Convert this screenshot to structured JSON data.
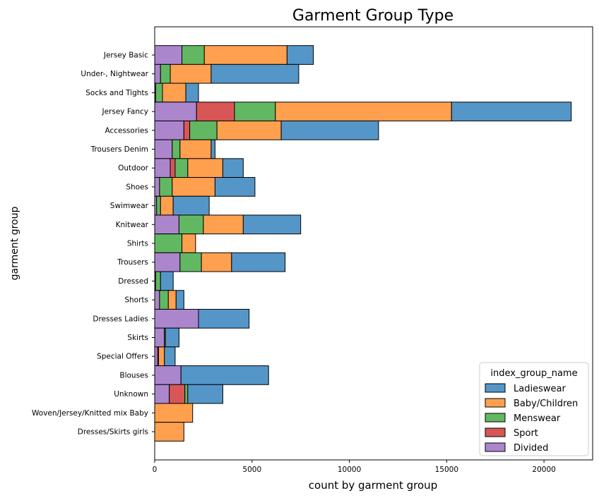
{
  "chart_data": {
    "type": "bar",
    "orientation": "horizontal",
    "stacked": true,
    "title": "Garment Group Type",
    "xlabel": "count by garment group",
    "ylabel": "garment group",
    "xlim": [
      0,
      22500
    ],
    "xticks": [
      0,
      5000,
      10000,
      15000,
      20000
    ],
    "grid": false,
    "legend": {
      "title": "index_group_name",
      "placement": "lower-right"
    },
    "categories": [
      "Jersey Basic",
      "Under-, Nightwear",
      "Socks and Tights",
      "Jersey Fancy",
      "Accessories",
      "Trousers Denim",
      "Outdoor",
      "Shoes",
      "Swimwear",
      "Knitwear",
      "Shirts",
      "Trousers",
      "Dressed",
      "Shorts",
      "Dresses Ladies",
      "Skirts",
      "Special Offers",
      "Blouses",
      "Unknown",
      "Woven/Jersey/Knitted mix Baby",
      "Dresses/Skirts girls"
    ],
    "series": [
      {
        "name": "Ladieswear",
        "color": "#5596c8",
        "values": [
          1350,
          4500,
          650,
          6150,
          5000,
          200,
          1050,
          2050,
          1850,
          2950,
          0,
          2750,
          650,
          400,
          2600,
          700,
          550,
          4500,
          1800,
          0,
          0
        ]
      },
      {
        "name": "Baby/Children",
        "color": "#ffa04f",
        "values": [
          4250,
          2100,
          1200,
          9050,
          3300,
          1600,
          1800,
          2200,
          650,
          2050,
          700,
          1550,
          0,
          400,
          0,
          50,
          300,
          0,
          0,
          1950,
          1500
        ]
      },
      {
        "name": "Menswear",
        "color": "#62b862",
        "values": [
          1150,
          500,
          350,
          2100,
          1400,
          400,
          650,
          650,
          200,
          1250,
          1400,
          1100,
          250,
          450,
          0,
          0,
          0,
          0,
          150,
          0,
          0
        ]
      },
      {
        "name": "Sport",
        "color": "#d95657",
        "values": [
          0,
          0,
          0,
          1950,
          300,
          0,
          250,
          0,
          0,
          0,
          0,
          0,
          0,
          0,
          0,
          0,
          50,
          0,
          800,
          0,
          0
        ]
      },
      {
        "name": "Divided",
        "color": "#ab86cc",
        "values": [
          1400,
          300,
          50,
          2150,
          1500,
          900,
          800,
          250,
          100,
          1250,
          0,
          1300,
          50,
          250,
          2250,
          500,
          150,
          1350,
          750,
          0,
          0
        ]
      }
    ]
  }
}
